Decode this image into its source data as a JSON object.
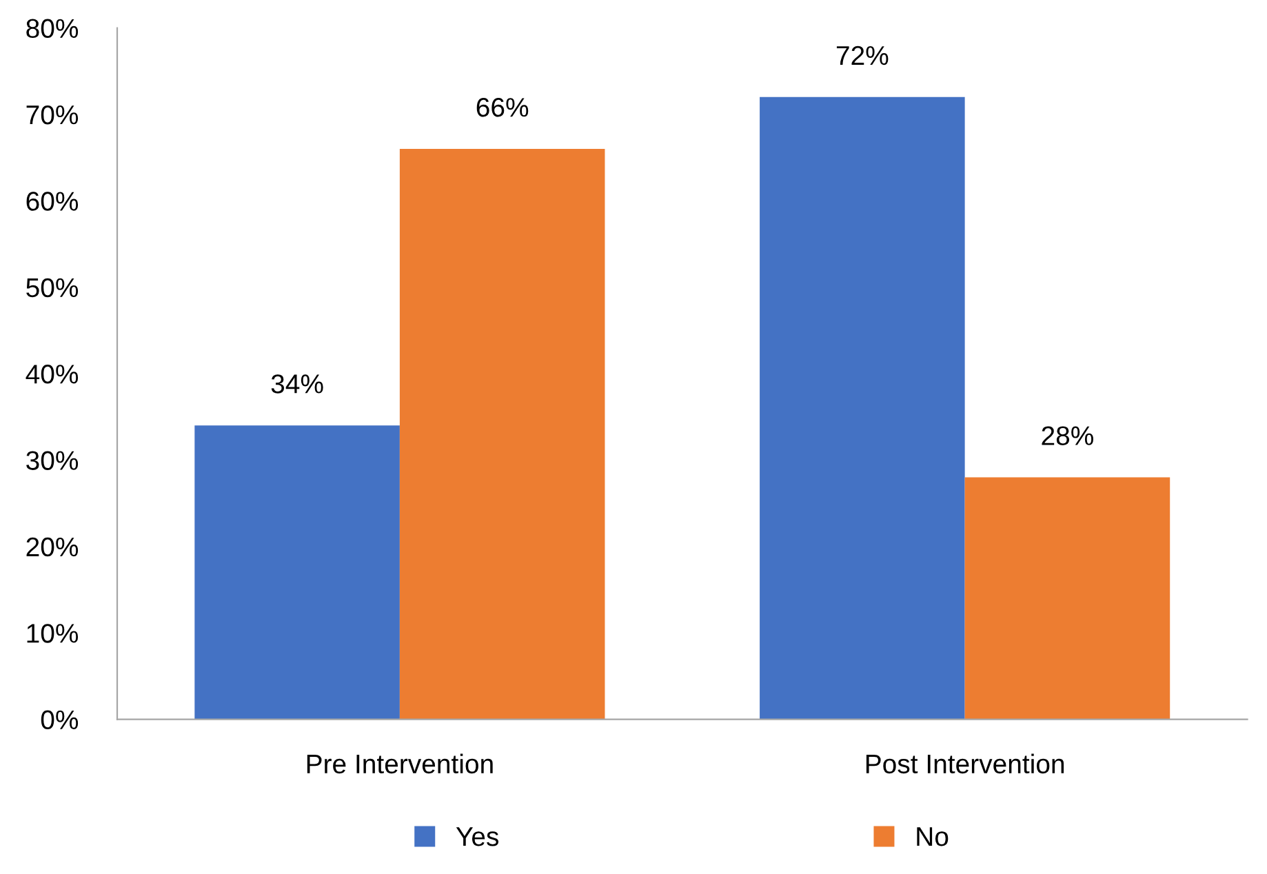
{
  "chart_data": {
    "type": "bar",
    "categories": [
      "Pre Intervention",
      "Post Intervention"
    ],
    "series": [
      {
        "name": "Yes",
        "color": "#4472c4",
        "values": [
          34,
          72
        ],
        "value_labels": [
          "34%",
          "72%"
        ]
      },
      {
        "name": "No",
        "color": "#ed7d31",
        "values": [
          66,
          28
        ],
        "value_labels": [
          "66%",
          "28%"
        ]
      }
    ],
    "ylim": [
      0,
      80
    ],
    "yticks": [
      {
        "value": 0,
        "label": "0%"
      },
      {
        "value": 10,
        "label": "10%"
      },
      {
        "value": 20,
        "label": "20%"
      },
      {
        "value": 30,
        "label": "30%"
      },
      {
        "value": 40,
        "label": "40%"
      },
      {
        "value": 50,
        "label": "50%"
      },
      {
        "value": 60,
        "label": "60%"
      },
      {
        "value": 70,
        "label": "70%"
      },
      {
        "value": 80,
        "label": "80%"
      }
    ],
    "grid": false,
    "legend": "bottom"
  }
}
